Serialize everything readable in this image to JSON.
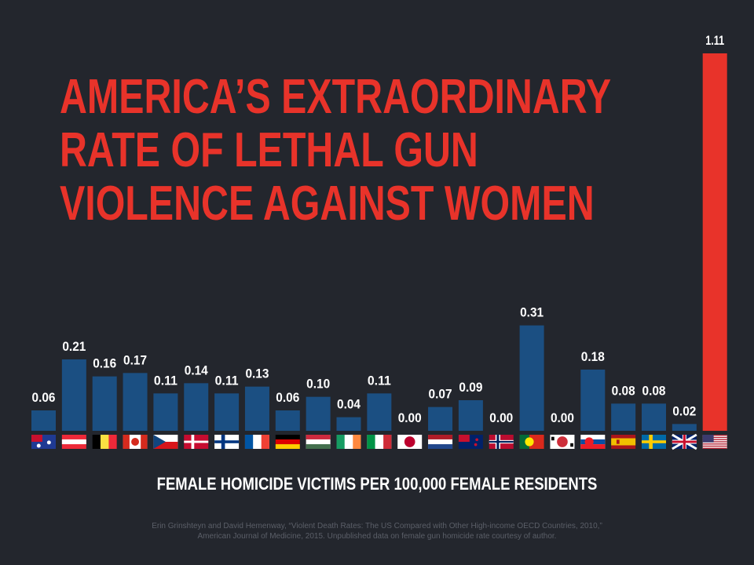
{
  "chart_data": {
    "type": "bar",
    "title_lines": [
      "AMERICA’S EXTRAORDINARY",
      "RATE OF LETHAL GUN",
      "VIOLENCE AGAINST WOMEN"
    ],
    "xlabel": "FEMALE HOMICIDE VICTIMS PER 100,000 FEMALE RESIDENTS",
    "ylabel": "",
    "ylim": [
      0,
      1.11
    ],
    "categories": [
      "Australia",
      "Austria",
      "Belgium",
      "Canada",
      "Czech Republic",
      "Denmark",
      "Finland",
      "France",
      "Germany",
      "Hungary",
      "Ireland",
      "Italy",
      "Japan",
      "Netherlands",
      "New Zealand",
      "Norway",
      "Portugal",
      "South Korea",
      "Slovakia",
      "Spain",
      "Sweden",
      "United Kingdom",
      "United States"
    ],
    "values": [
      0.06,
      0.21,
      0.16,
      0.17,
      0.11,
      0.14,
      0.11,
      0.13,
      0.06,
      0.1,
      0.04,
      0.11,
      0.0,
      0.07,
      0.09,
      0.0,
      0.31,
      0.0,
      0.18,
      0.08,
      0.08,
      0.02,
      1.11
    ],
    "labels": [
      "0.06",
      "0.21",
      "0.16",
      "0.17",
      "0.11",
      "0.14",
      "0.11",
      "0.13",
      "0.06",
      "0.10",
      "0.04",
      "0.11",
      "0.00",
      "0.07",
      "0.09",
      "0.00",
      "0.31",
      "0.00",
      "0.18",
      "0.08",
      "0.08",
      "0.02",
      "1.11"
    ],
    "highlight_index": 22,
    "colors": {
      "bar": "#1b4f82",
      "highlight": "#e8332a",
      "text": "#ffffff",
      "background": "#23262d"
    }
  },
  "source_lines": [
    "Erin Grinshteyn and David Hemenway, “Violent Death Rates: The US Compared with Other High-income OECD Countries, 2010,”",
    "American Journal of Medicine, 2015.  Unpublished data on female gun homicide rate courtesy of author."
  ]
}
